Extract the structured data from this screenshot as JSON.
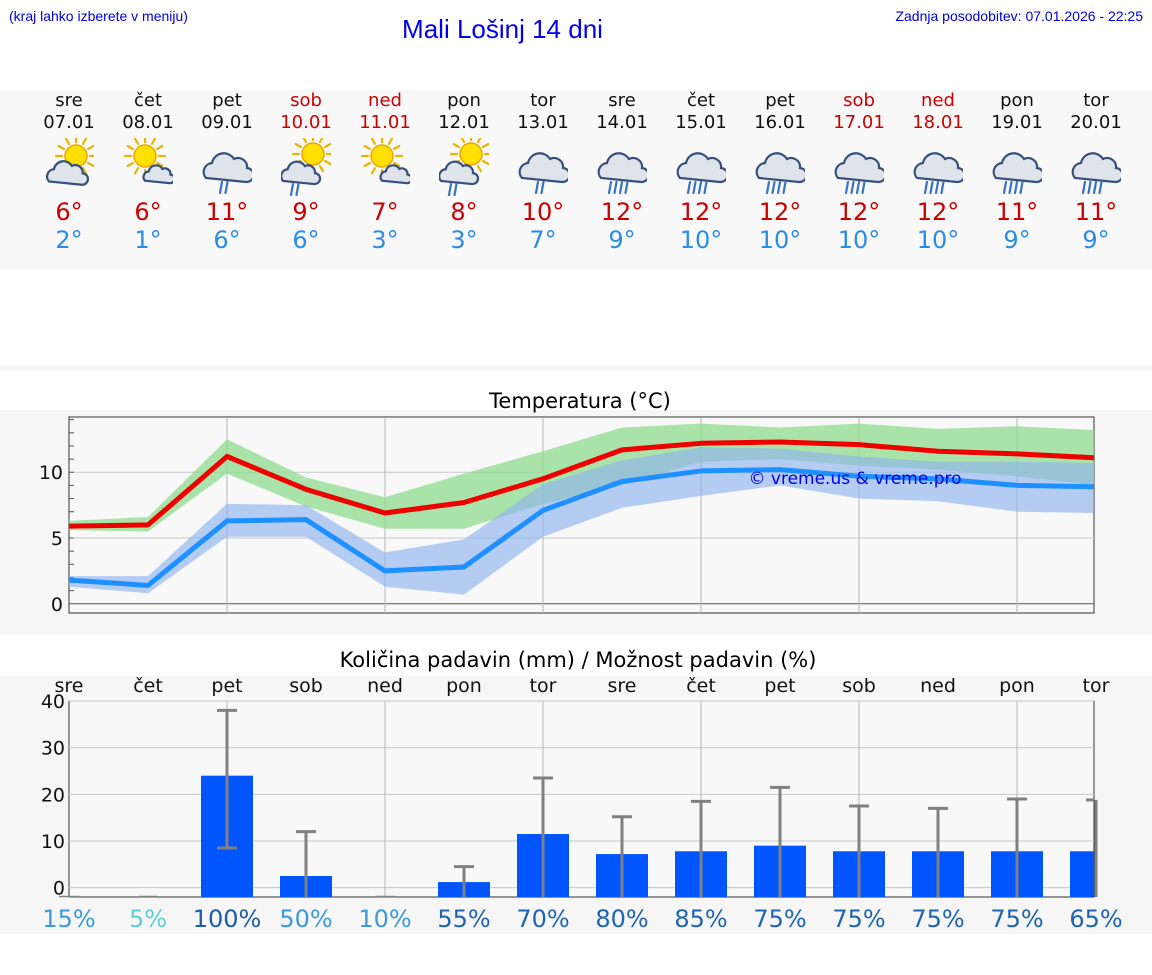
{
  "header": {
    "hint": "(kraj lahko izberete v meniju)",
    "title": "Mali Lošinj 14 dni",
    "updated": "Zadnja posodobitev: 07.01.2026 - 22:25"
  },
  "days": [
    {
      "name": "sre",
      "date": "07.01",
      "max": "6°",
      "min": "2°",
      "icon": "sun-cloud-icon",
      "weekend": false
    },
    {
      "name": "čet",
      "date": "08.01",
      "max": "6°",
      "min": "1°",
      "icon": "sun-small-cloud-icon",
      "weekend": false
    },
    {
      "name": "pet",
      "date": "09.01",
      "max": "11°",
      "min": "6°",
      "icon": "cloud-rain-icon",
      "weekend": false
    },
    {
      "name": "sob",
      "date": "10.01",
      "max": "9°",
      "min": "6°",
      "icon": "sun-cloud-rain-icon",
      "weekend": true
    },
    {
      "name": "ned",
      "date": "11.01",
      "max": "7°",
      "min": "3°",
      "icon": "sun-small-cloud-icon",
      "weekend": true
    },
    {
      "name": "pon",
      "date": "12.01",
      "max": "8°",
      "min": "3°",
      "icon": "sun-cloud-rain-icon",
      "weekend": false
    },
    {
      "name": "tor",
      "date": "13.01",
      "max": "10°",
      "min": "7°",
      "icon": "cloud-rain-icon",
      "weekend": false
    },
    {
      "name": "sre",
      "date": "14.01",
      "max": "12°",
      "min": "9°",
      "icon": "cloud-heavy-rain-icon",
      "weekend": false
    },
    {
      "name": "čet",
      "date": "15.01",
      "max": "12°",
      "min": "10°",
      "icon": "cloud-heavy-rain-icon",
      "weekend": false
    },
    {
      "name": "pet",
      "date": "16.01",
      "max": "12°",
      "min": "10°",
      "icon": "cloud-heavy-rain-icon",
      "weekend": false
    },
    {
      "name": "sob",
      "date": "17.01",
      "max": "12°",
      "min": "10°",
      "icon": "cloud-heavy-rain-icon",
      "weekend": true
    },
    {
      "name": "ned",
      "date": "18.01",
      "max": "12°",
      "min": "10°",
      "icon": "cloud-heavy-rain-icon",
      "weekend": true
    },
    {
      "name": "pon",
      "date": "19.01",
      "max": "11°",
      "min": "9°",
      "icon": "cloud-heavy-rain-icon",
      "weekend": false
    },
    {
      "name": "tor",
      "date": "20.01",
      "max": "11°",
      "min": "9°",
      "icon": "cloud-heavy-rain-icon",
      "weekend": false
    }
  ],
  "colors": {
    "max_line": "#ee0000",
    "max_band": "#8fdc8f",
    "min_line": "#1e90ff",
    "min_band": "#8fb4ee",
    "bar": "#0055ff",
    "err": "#808080",
    "weekend": "#cc0000",
    "min_text": "#2b8ce6"
  },
  "chart_data": [
    {
      "type": "line",
      "title": "Temperatura (°C)",
      "watermark": "© vreme.us & vreme.pro",
      "ylim": [
        -0.7,
        14.2
      ],
      "yticks": [
        0,
        5,
        10
      ],
      "x_day_index": [
        0,
        1,
        2,
        3,
        4,
        5,
        6,
        7,
        8,
        9,
        10,
        11,
        12,
        13
      ],
      "series": [
        {
          "name": "max",
          "values": [
            5.9,
            6.0,
            11.2,
            8.7,
            6.9,
            7.7,
            9.5,
            11.7,
            12.2,
            12.3,
            12.1,
            11.6,
            11.4,
            11.1
          ],
          "band_low": [
            5.6,
            5.5,
            9.9,
            7.4,
            5.7,
            5.7,
            7.6,
            9.0,
            10.8,
            11.0,
            10.5,
            10.2,
            9.7,
            9.0
          ],
          "band_high": [
            6.3,
            6.6,
            12.5,
            9.6,
            8.1,
            9.9,
            11.6,
            13.4,
            13.7,
            13.4,
            13.7,
            13.3,
            13.5,
            13.2
          ]
        },
        {
          "name": "min",
          "values": [
            1.8,
            1.4,
            6.3,
            6.4,
            2.5,
            2.8,
            7.1,
            9.3,
            10.1,
            10.2,
            9.7,
            9.5,
            9.0,
            8.9
          ],
          "band_low": [
            1.3,
            0.8,
            5.1,
            5.1,
            1.3,
            0.7,
            5.1,
            7.3,
            8.2,
            9.0,
            8.0,
            7.8,
            7.0,
            6.9
          ],
          "band_high": [
            2.1,
            2.1,
            7.6,
            7.5,
            3.9,
            4.9,
            9.1,
            10.9,
            11.9,
            11.8,
            11.2,
            10.8,
            10.8,
            10.7
          ]
        }
      ]
    },
    {
      "type": "bar",
      "title": "Količina padavin (mm) / Možnost padavin (%)",
      "ylim": [
        -2,
        40
      ],
      "yticks": [
        0,
        10,
        20,
        30,
        40
      ],
      "categories": [
        "sre",
        "čet",
        "pet",
        "sob",
        "ned",
        "pon",
        "tor",
        "sre",
        "čet",
        "pet",
        "sob",
        "ned",
        "pon",
        "tor"
      ],
      "values": [
        0,
        0,
        24,
        2.5,
        0,
        1.2,
        11.5,
        7.2,
        7.8,
        9.0,
        7.8,
        7.8,
        7.8,
        7.8
      ],
      "err_high": [
        0,
        0,
        38,
        12,
        0,
        4.5,
        23.5,
        15.2,
        18.5,
        21.5,
        17.5,
        17.0,
        19.0,
        18.8
      ],
      "err_low": [
        0,
        0,
        8.5,
        0,
        0,
        0,
        0,
        0,
        0,
        0,
        0,
        0,
        0,
        0
      ],
      "probability": [
        "15%",
        "5%",
        "100%",
        "50%",
        "10%",
        "55%",
        "70%",
        "80%",
        "85%",
        "75%",
        "75%",
        "75%",
        "75%",
        "65%"
      ],
      "probability_colors": [
        "#3c9ad8",
        "#5dcfd8",
        "#1c5ca8",
        "#3c9ad8",
        "#3c9ad8",
        "#1f64b0",
        "#1f64b0",
        "#1f64b0",
        "#1f64b0",
        "#1f64b0",
        "#1f64b0",
        "#1f64b0",
        "#1f64b0",
        "#1f64b0"
      ]
    }
  ]
}
